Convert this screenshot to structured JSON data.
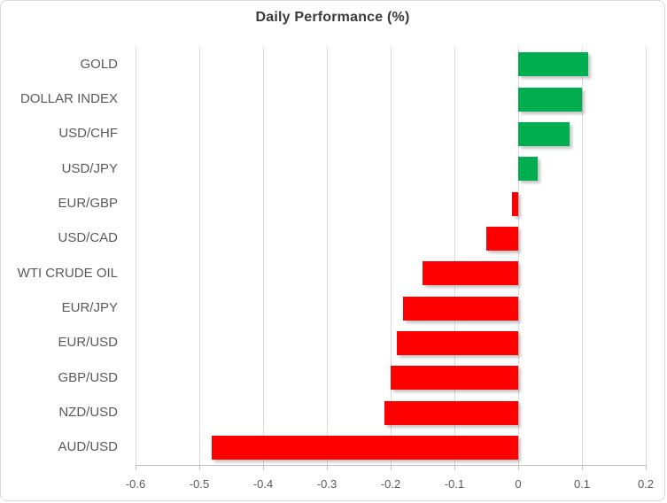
{
  "chart_data": {
    "type": "bar",
    "orientation": "horizontal",
    "title": "Daily Performance (%)",
    "categories": [
      "GOLD",
      "DOLLAR INDEX",
      "USD/CHF",
      "USD/JPY",
      "EUR/GBP",
      "USD/CAD",
      "WTI CRUDE OIL",
      "EUR/JPY",
      "EUR/USD",
      "GBP/USD",
      "NZD/USD",
      "AUD/USD"
    ],
    "values": [
      0.11,
      0.1,
      0.08,
      0.03,
      -0.01,
      -0.05,
      -0.15,
      -0.18,
      -0.19,
      -0.2,
      -0.21,
      -0.48
    ],
    "xlabel": "",
    "ylabel": "",
    "xlim": [
      -0.6,
      0.2
    ],
    "xticks": [
      -0.6,
      -0.5,
      -0.4,
      -0.3,
      -0.2,
      -0.1,
      0,
      0.1,
      0.2
    ],
    "xtick_labels": [
      "-0.6",
      "-0.5",
      "-0.4",
      "-0.3",
      "-0.2",
      "-0.1",
      "0",
      "0.1",
      "0.2"
    ],
    "grid": true,
    "legend": false,
    "colors": {
      "positive": "#00ae4f",
      "negative": "#ff0000",
      "gridline": "#d9d9d9",
      "axis_line": "#bfbfbf",
      "label_text": "#595959",
      "title_text": "#3a3a3a"
    }
  }
}
